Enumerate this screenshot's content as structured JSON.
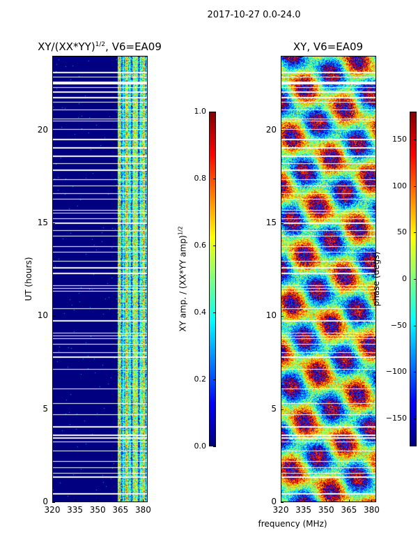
{
  "figure": {
    "suptitle": "2017-10-27 0.0-24.0"
  },
  "chart_data": [
    {
      "type": "heatmap",
      "title_main": "XY/(XX*YY)",
      "title_sup": "1/2",
      "title_rest": ", V6=EA09",
      "xlabel": "",
      "ylabel": "UT (hours)",
      "xlim": [
        320,
        383
      ],
      "ylim": [
        0,
        24
      ],
      "x_ticks": [
        "320",
        "335",
        "350",
        "365",
        "380"
      ],
      "x_tick_values": [
        320,
        335,
        350,
        365,
        380
      ],
      "y_ticks": [
        "0",
        "5",
        "10",
        "15",
        "20"
      ],
      "y_tick_values": [
        0,
        5,
        10,
        15,
        20
      ],
      "colorbar": {
        "label_main": "XY amp. / (XX*YY amp)",
        "label_sup": "1/2",
        "vmin": 0.0,
        "vmax": 1.0,
        "ticks": [
          "0.0",
          "0.2",
          "0.4",
          "0.6",
          "0.8",
          "1.0"
        ],
        "tick_values": [
          0.0,
          0.2,
          0.4,
          0.6,
          0.8,
          1.0
        ]
      },
      "description_values": {
        "low_band_level": 0.0,
        "high_band_range_mhz": [
          363,
          383
        ],
        "high_band_level_range": [
          0.2,
          0.9
        ]
      }
    },
    {
      "type": "heatmap",
      "title": "XY, V6=EA09",
      "xlabel": "frequency (MHz)",
      "ylabel": "",
      "xlim": [
        320,
        383
      ],
      "ylim": [
        0,
        24
      ],
      "x_ticks": [
        "320",
        "335",
        "350",
        "365",
        "380"
      ],
      "x_tick_values": [
        320,
        335,
        350,
        365,
        380
      ],
      "y_ticks": [
        "0",
        "5",
        "10",
        "15",
        "20"
      ],
      "y_tick_values": [
        0,
        5,
        10,
        15,
        20
      ],
      "colorbar": {
        "label": "phase (degs)",
        "vmin": -180,
        "vmax": 180,
        "ticks": [
          "−150",
          "−100",
          "−50",
          "0",
          "50",
          "100",
          "150"
        ],
        "tick_values": [
          -150,
          -100,
          -50,
          0,
          50,
          100,
          150
        ]
      }
    }
  ],
  "gaps_hours": [
    0.45,
    1.35,
    1.55,
    1.85,
    2.2,
    2.75,
    3.25,
    3.45,
    3.6,
    4.05,
    4.7,
    5.3,
    6.1,
    7.15,
    7.8,
    8.05,
    8.5,
    8.8,
    8.95,
    9.1,
    9.75,
    10.4,
    11.35,
    11.5,
    11.65,
    12.3,
    12.6,
    12.95,
    13.45,
    13.75,
    14.3,
    14.6,
    15.0,
    15.25,
    15.55,
    15.7,
    16.3,
    16.6,
    17.0,
    17.35,
    17.85,
    18.2,
    18.6,
    19.05,
    19.5,
    20.05,
    20.5,
    20.6,
    21.1,
    21.5,
    21.75,
    22.05,
    22.3,
    22.5,
    22.55,
    22.6,
    22.85,
    23.1
  ]
}
